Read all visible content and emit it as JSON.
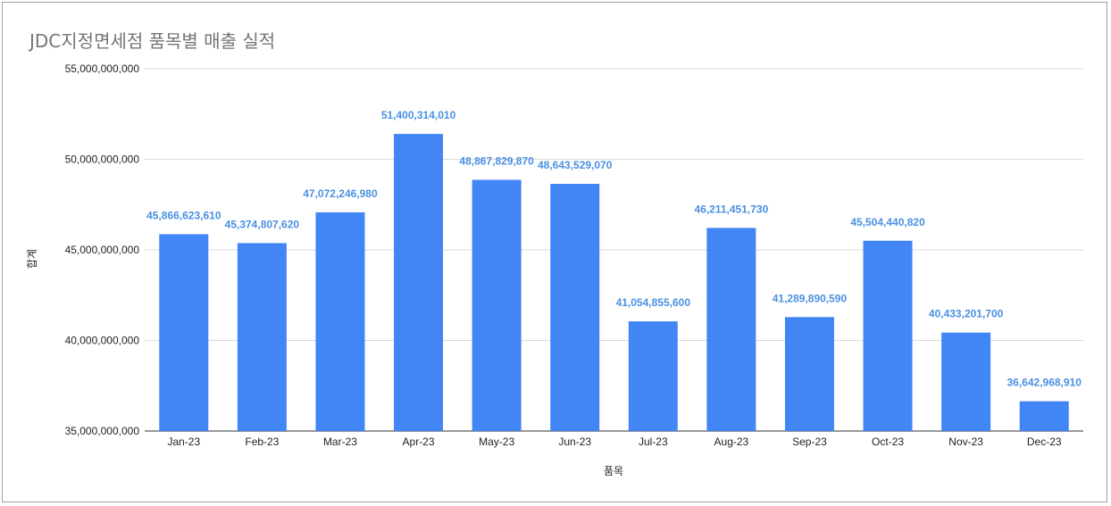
{
  "chart_data": {
    "type": "bar",
    "title": "JDC지정면세점 품목별 매출 실적",
    "xlabel": "품목",
    "ylabel": "합계",
    "categories": [
      "Jan-23",
      "Feb-23",
      "Mar-23",
      "Apr-23",
      "May-23",
      "Jun-23",
      "Jul-23",
      "Aug-23",
      "Sep-23",
      "Oct-23",
      "Nov-23",
      "Dec-23"
    ],
    "values": [
      45866623610,
      45374807620,
      47072246980,
      51400314010,
      48867829870,
      48643529070,
      41054855600,
      46211451730,
      41289890590,
      45504440820,
      40433201700,
      36642968910
    ],
    "data_labels": [
      "45,866,623,610",
      "45,374,807,620",
      "47,072,246,980",
      "51,400,314,010",
      "48,867,829,870",
      "48,643,529,070",
      "41,054,855,600",
      "46,211,451,730",
      "41,289,890,590",
      "45,504,440,820",
      "40,433,201,700",
      "36,642,968,910"
    ],
    "ylim": [
      35000000000,
      55000000000
    ],
    "y_ticks": [
      35000000000,
      40000000000,
      45000000000,
      50000000000,
      55000000000
    ],
    "y_tick_labels": [
      "35,000,000,000",
      "40,000,000,000",
      "45,000,000,000",
      "50,000,000,000",
      "55,000,000,000"
    ],
    "grid": true,
    "legend": "none",
    "colors": {
      "bar": "#4285f4",
      "data_label": "#4a90e2",
      "grid": "#d9d9d9",
      "title": "#757575"
    }
  }
}
